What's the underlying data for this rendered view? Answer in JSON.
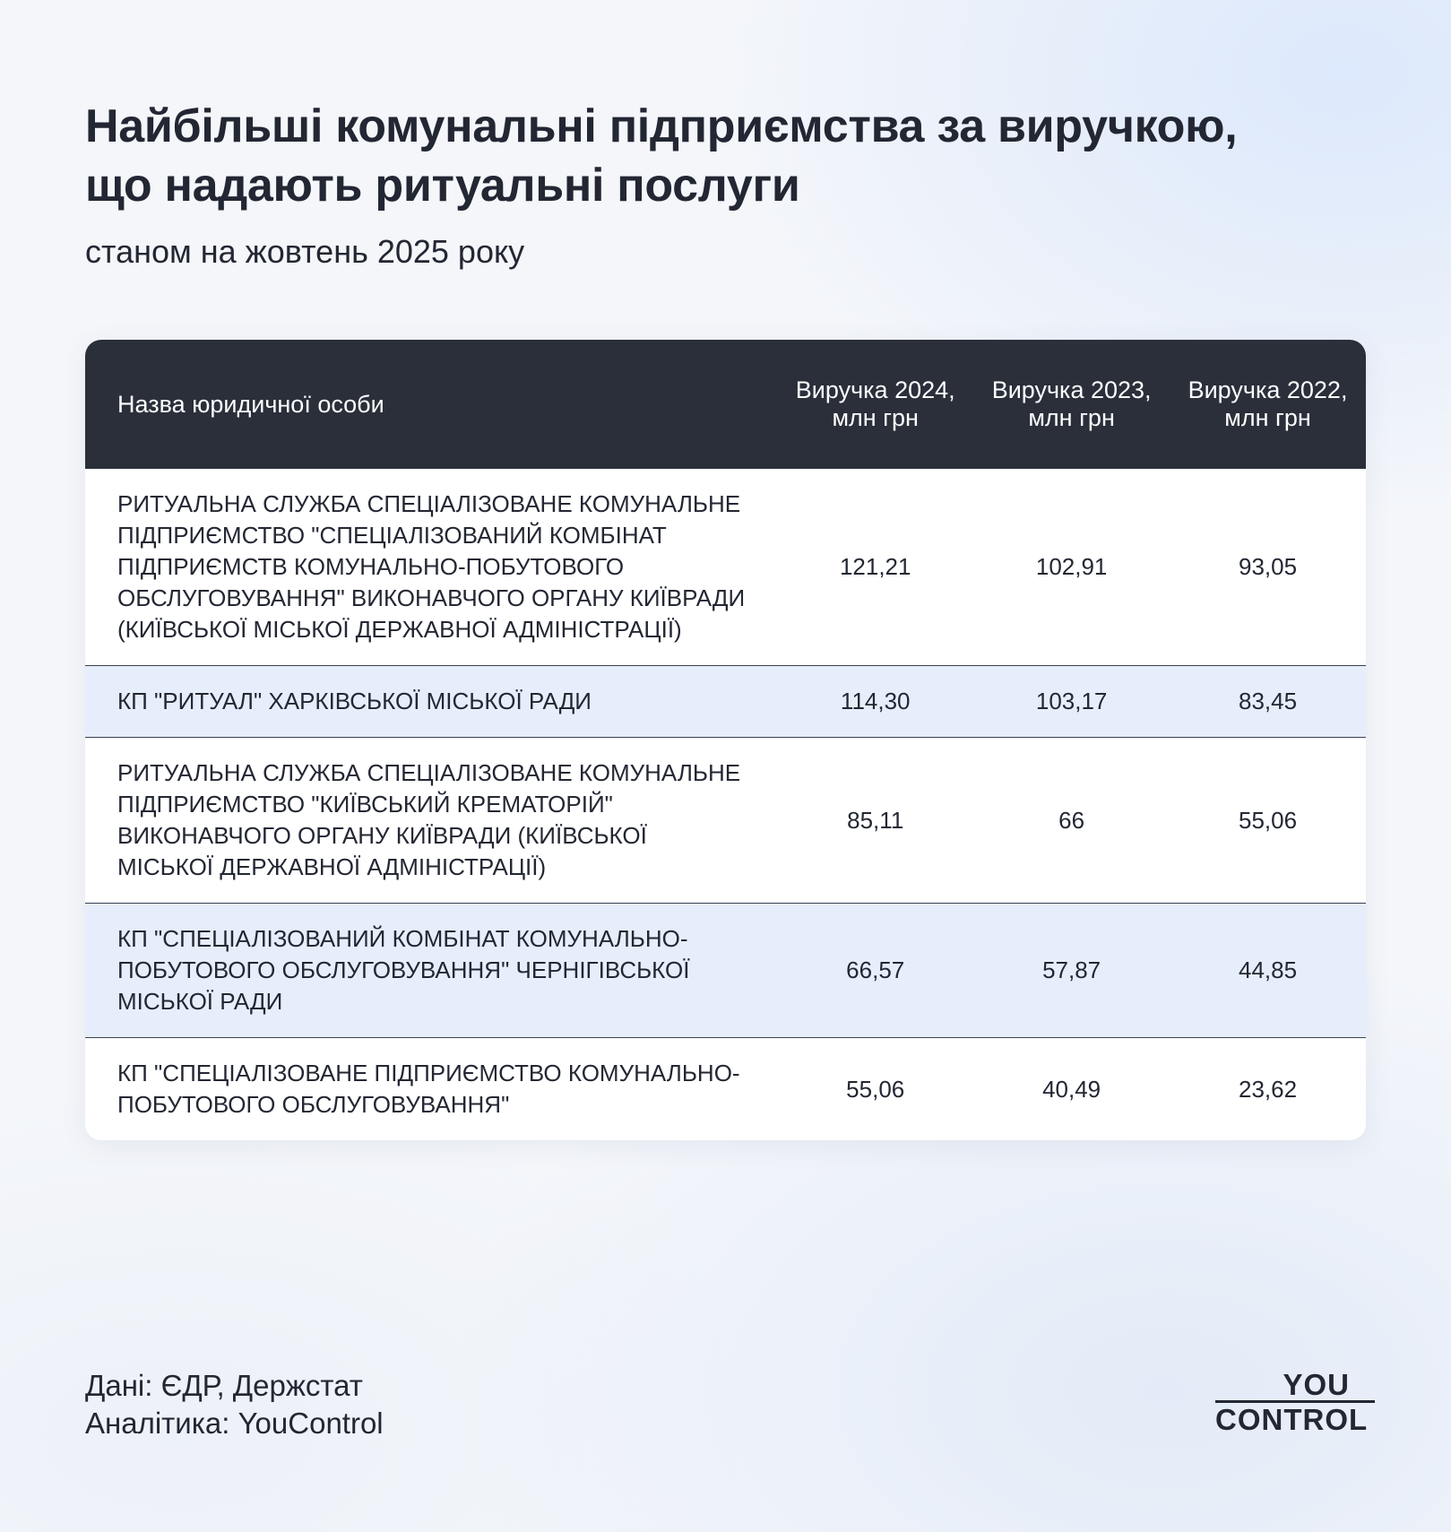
{
  "header": {
    "title": [
      "Найбільші комунальні підприємства за виручкою,",
      "що надають ритуальні послуги"
    ],
    "subtitle": "станом на жовтень 2025 року"
  },
  "table": {
    "columns": [
      "Назва юридичної особи",
      "Виручка 2024, млн грн",
      "Виручка 2023, млн грн",
      "Виручка 2022, млн грн"
    ],
    "rows": [
      [
        "РИТУАЛЬНА СЛУЖБА СПЕЦІАЛІЗОВАНЕ КОМУНАЛЬНЕ ПІДПРИЄМСТВО \"СПЕЦІАЛІЗОВАНИЙ КОМБІНАТ ПІДПРИЄМСТВ КОМУНАЛЬНО-ПОБУТОВОГО ОБСЛУГОВУВАННЯ\" ВИКОНАВЧОГО ОРГАНУ КИЇВРАДИ (КИЇВСЬКОЇ МІСЬКОЇ ДЕРЖАВНОЇ АДМІНІСТРАЦІЇ)",
        "121,21",
        "102,91",
        "93,05"
      ],
      [
        "КП \"РИТУАЛ\" ХАРКІВСЬКОЇ МІСЬКОЇ РАДИ",
        "114,30",
        "103,17",
        "83,45"
      ],
      [
        "РИТУАЛЬНА СЛУЖБА СПЕЦІАЛІЗОВАНЕ КОМУНАЛЬНЕ ПІДПРИЄМСТВО \"КИЇВСЬКИЙ КРЕМАТОРІЙ\" ВИКОНАВЧОГО ОРГАНУ КИЇВРАДИ (КИЇВСЬКОЇ МІСЬКОЇ ДЕРЖАВНОЇ АДМІНІСТРАЦІЇ)",
        "85,11",
        "66",
        "55,06"
      ],
      [
        "КП \"СПЕЦІАЛІЗОВАНИЙ КОМБІНАТ КОМУНАЛЬНО-ПОБУТОВОГО ОБСЛУГОВУВАННЯ\" ЧЕРНІГІВСЬКОЇ МІСЬКОЇ РАДИ",
        "66,57",
        "57,87",
        "44,85"
      ],
      [
        "КП \"СПЕЦІАЛІЗОВАНЕ ПІДПРИЄМСТВО КОМУНАЛЬНО-ПОБУТОВОГО ОБСЛУГОВУВАННЯ\"",
        "55,06",
        "40,49",
        "23,62"
      ]
    ]
  },
  "footer": {
    "source": "Дані: ЄДР, Держстат",
    "analytics": "Аналітика: YouControl",
    "logo": [
      "YOU",
      "CONTROL"
    ]
  }
}
